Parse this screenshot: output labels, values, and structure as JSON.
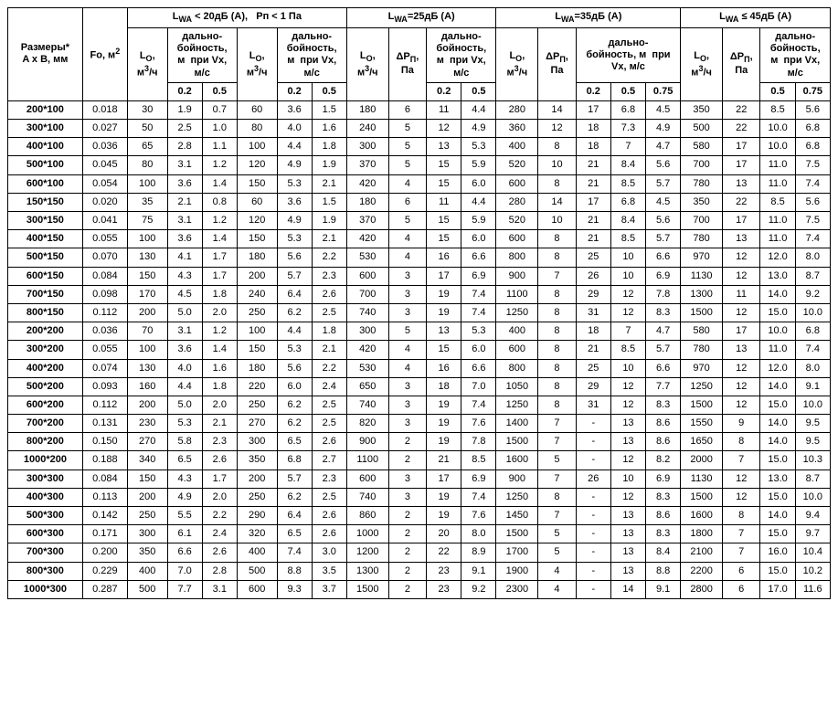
{
  "headers": {
    "size": "Размеры*\nA x B, мм",
    "fo": "Fo, м",
    "fo_sup": "2",
    "g1_top": "L<sub>WA</sub> &lt; 20дБ (А),&nbsp;&nbsp;&nbsp;Pп &lt; 1 Па",
    "g2_top": "L<sub>WA</sub>=25дБ (А)",
    "g3_top": "L<sub>WA</sub>=35дБ (А)",
    "g4_top": "L<sub>WA</sub> ≤ 45дБ (А)",
    "lo": "L<sub>O</sub>,<br>м<sup>3</sup>/ч",
    "dp": "ΔP<sub>П</sub>,<br>Па",
    "range": "дально-<br>бойность,<br>м&nbsp;&nbsp;при Vx,<br>м/с",
    "range3": "дально-<br>бойность, м&nbsp;&nbsp;при<br>Vx, м/с",
    "v02": "0.2",
    "v05": "0.5",
    "v075": "0.75"
  },
  "rows": [
    {
      "size": "200*100",
      "fo": "0.018",
      "g1a_lo": "30",
      "g1a_02": "1.9",
      "g1a_05": "0.7",
      "g1b_lo": "60",
      "g1b_02": "3.6",
      "g1b_05": "1.5",
      "g2_lo": "180",
      "g2_dp": "6",
      "g2_02": "11",
      "g2_05": "4.4",
      "g3_lo": "280",
      "g3_dp": "14",
      "g3_02": "17",
      "g3_05": "6.8",
      "g3_075": "4.5",
      "g4_lo": "350",
      "g4_dp": "22",
      "g4_05": "8.5",
      "g4_075": "5.6"
    },
    {
      "size": "300*100",
      "fo": "0.027",
      "g1a_lo": "50",
      "g1a_02": "2.5",
      "g1a_05": "1.0",
      "g1b_lo": "80",
      "g1b_02": "4.0",
      "g1b_05": "1.6",
      "g2_lo": "240",
      "g2_dp": "5",
      "g2_02": "12",
      "g2_05": "4.9",
      "g3_lo": "360",
      "g3_dp": "12",
      "g3_02": "18",
      "g3_05": "7.3",
      "g3_075": "4.9",
      "g4_lo": "500",
      "g4_dp": "22",
      "g4_05": "10.0",
      "g4_075": "6.8"
    },
    {
      "size": "400*100",
      "fo": "0.036",
      "g1a_lo": "65",
      "g1a_02": "2.8",
      "g1a_05": "1.1",
      "g1b_lo": "100",
      "g1b_02": "4.4",
      "g1b_05": "1.8",
      "g2_lo": "300",
      "g2_dp": "5",
      "g2_02": "13",
      "g2_05": "5.3",
      "g3_lo": "400",
      "g3_dp": "8",
      "g3_02": "18",
      "g3_05": "7",
      "g3_075": "4.7",
      "g4_lo": "580",
      "g4_dp": "17",
      "g4_05": "10.0",
      "g4_075": "6.8"
    },
    {
      "size": "500*100",
      "fo": "0.045",
      "g1a_lo": "80",
      "g1a_02": "3.1",
      "g1a_05": "1.2",
      "g1b_lo": "120",
      "g1b_02": "4.9",
      "g1b_05": "1.9",
      "g2_lo": "370",
      "g2_dp": "5",
      "g2_02": "15",
      "g2_05": "5.9",
      "g3_lo": "520",
      "g3_dp": "10",
      "g3_02": "21",
      "g3_05": "8.4",
      "g3_075": "5.6",
      "g4_lo": "700",
      "g4_dp": "17",
      "g4_05": "11.0",
      "g4_075": "7.5"
    },
    {
      "size": "600*100",
      "fo": "0.054",
      "g1a_lo": "100",
      "g1a_02": "3.6",
      "g1a_05": "1.4",
      "g1b_lo": "150",
      "g1b_02": "5.3",
      "g1b_05": "2.1",
      "g2_lo": "420",
      "g2_dp": "4",
      "g2_02": "15",
      "g2_05": "6.0",
      "g3_lo": "600",
      "g3_dp": "8",
      "g3_02": "21",
      "g3_05": "8.5",
      "g3_075": "5.7",
      "g4_lo": "780",
      "g4_dp": "13",
      "g4_05": "11.0",
      "g4_075": "7.4"
    },
    {
      "size": "150*150",
      "fo": "0.020",
      "g1a_lo": "35",
      "g1a_02": "2.1",
      "g1a_05": "0.8",
      "g1b_lo": "60",
      "g1b_02": "3.6",
      "g1b_05": "1.5",
      "g2_lo": "180",
      "g2_dp": "6",
      "g2_02": "11",
      "g2_05": "4.4",
      "g3_lo": "280",
      "g3_dp": "14",
      "g3_02": "17",
      "g3_05": "6.8",
      "g3_075": "4.5",
      "g4_lo": "350",
      "g4_dp": "22",
      "g4_05": "8.5",
      "g4_075": "5.6"
    },
    {
      "size": "300*150",
      "fo": "0.041",
      "g1a_lo": "75",
      "g1a_02": "3.1",
      "g1a_05": "1.2",
      "g1b_lo": "120",
      "g1b_02": "4.9",
      "g1b_05": "1.9",
      "g2_lo": "370",
      "g2_dp": "5",
      "g2_02": "15",
      "g2_05": "5.9",
      "g3_lo": "520",
      "g3_dp": "10",
      "g3_02": "21",
      "g3_05": "8.4",
      "g3_075": "5.6",
      "g4_lo": "700",
      "g4_dp": "17",
      "g4_05": "11.0",
      "g4_075": "7.5"
    },
    {
      "size": "400*150",
      "fo": "0.055",
      "g1a_lo": "100",
      "g1a_02": "3.6",
      "g1a_05": "1.4",
      "g1b_lo": "150",
      "g1b_02": "5.3",
      "g1b_05": "2.1",
      "g2_lo": "420",
      "g2_dp": "4",
      "g2_02": "15",
      "g2_05": "6.0",
      "g3_lo": "600",
      "g3_dp": "8",
      "g3_02": "21",
      "g3_05": "8.5",
      "g3_075": "5.7",
      "g4_lo": "780",
      "g4_dp": "13",
      "g4_05": "11.0",
      "g4_075": "7.4"
    },
    {
      "size": "500*150",
      "fo": "0.070",
      "g1a_lo": "130",
      "g1a_02": "4.1",
      "g1a_05": "1.7",
      "g1b_lo": "180",
      "g1b_02": "5.6",
      "g1b_05": "2.2",
      "g2_lo": "530",
      "g2_dp": "4",
      "g2_02": "16",
      "g2_05": "6.6",
      "g3_lo": "800",
      "g3_dp": "8",
      "g3_02": "25",
      "g3_05": "10",
      "g3_075": "6.6",
      "g4_lo": "970",
      "g4_dp": "12",
      "g4_05": "12.0",
      "g4_075": "8.0"
    },
    {
      "size": "600*150",
      "fo": "0.084",
      "g1a_lo": "150",
      "g1a_02": "4.3",
      "g1a_05": "1.7",
      "g1b_lo": "200",
      "g1b_02": "5.7",
      "g1b_05": "2.3",
      "g2_lo": "600",
      "g2_dp": "3",
      "g2_02": "17",
      "g2_05": "6.9",
      "g3_lo": "900",
      "g3_dp": "7",
      "g3_02": "26",
      "g3_05": "10",
      "g3_075": "6.9",
      "g4_lo": "1130",
      "g4_dp": "12",
      "g4_05": "13.0",
      "g4_075": "8.7"
    },
    {
      "size": "700*150",
      "fo": "0.098",
      "g1a_lo": "170",
      "g1a_02": "4.5",
      "g1a_05": "1.8",
      "g1b_lo": "240",
      "g1b_02": "6.4",
      "g1b_05": "2.6",
      "g2_lo": "700",
      "g2_dp": "3",
      "g2_02": "19",
      "g2_05": "7.4",
      "g3_lo": "1100",
      "g3_dp": "8",
      "g3_02": "29",
      "g3_05": "12",
      "g3_075": "7.8",
      "g4_lo": "1300",
      "g4_dp": "11",
      "g4_05": "14.0",
      "g4_075": "9.2"
    },
    {
      "size": "800*150",
      "fo": "0.112",
      "g1a_lo": "200",
      "g1a_02": "5.0",
      "g1a_05": "2.0",
      "g1b_lo": "250",
      "g1b_02": "6.2",
      "g1b_05": "2.5",
      "g2_lo": "740",
      "g2_dp": "3",
      "g2_02": "19",
      "g2_05": "7.4",
      "g3_lo": "1250",
      "g3_dp": "8",
      "g3_02": "31",
      "g3_05": "12",
      "g3_075": "8.3",
      "g4_lo": "1500",
      "g4_dp": "12",
      "g4_05": "15.0",
      "g4_075": "10.0"
    },
    {
      "size": "200*200",
      "fo": "0.036",
      "g1a_lo": "70",
      "g1a_02": "3.1",
      "g1a_05": "1.2",
      "g1b_lo": "100",
      "g1b_02": "4.4",
      "g1b_05": "1.8",
      "g2_lo": "300",
      "g2_dp": "5",
      "g2_02": "13",
      "g2_05": "5.3",
      "g3_lo": "400",
      "g3_dp": "8",
      "g3_02": "18",
      "g3_05": "7",
      "g3_075": "4.7",
      "g4_lo": "580",
      "g4_dp": "17",
      "g4_05": "10.0",
      "g4_075": "6.8"
    },
    {
      "size": "300*200",
      "fo": "0.055",
      "g1a_lo": "100",
      "g1a_02": "3.6",
      "g1a_05": "1.4",
      "g1b_lo": "150",
      "g1b_02": "5.3",
      "g1b_05": "2.1",
      "g2_lo": "420",
      "g2_dp": "4",
      "g2_02": "15",
      "g2_05": "6.0",
      "g3_lo": "600",
      "g3_dp": "8",
      "g3_02": "21",
      "g3_05": "8.5",
      "g3_075": "5.7",
      "g4_lo": "780",
      "g4_dp": "13",
      "g4_05": "11.0",
      "g4_075": "7.4"
    },
    {
      "size": "400*200",
      "fo": "0.074",
      "g1a_lo": "130",
      "g1a_02": "4.0",
      "g1a_05": "1.6",
      "g1b_lo": "180",
      "g1b_02": "5.6",
      "g1b_05": "2.2",
      "g2_lo": "530",
      "g2_dp": "4",
      "g2_02": "16",
      "g2_05": "6.6",
      "g3_lo": "800",
      "g3_dp": "8",
      "g3_02": "25",
      "g3_05": "10",
      "g3_075": "6.6",
      "g4_lo": "970",
      "g4_dp": "12",
      "g4_05": "12.0",
      "g4_075": "8.0"
    },
    {
      "size": "500*200",
      "fo": "0.093",
      "g1a_lo": "160",
      "g1a_02": "4.4",
      "g1a_05": "1.8",
      "g1b_lo": "220",
      "g1b_02": "6.0",
      "g1b_05": "2.4",
      "g2_lo": "650",
      "g2_dp": "3",
      "g2_02": "18",
      "g2_05": "7.0",
      "g3_lo": "1050",
      "g3_dp": "8",
      "g3_02": "29",
      "g3_05": "12",
      "g3_075": "7.7",
      "g4_lo": "1250",
      "g4_dp": "12",
      "g4_05": "14.0",
      "g4_075": "9.1"
    },
    {
      "size": "600*200",
      "fo": "0.112",
      "g1a_lo": "200",
      "g1a_02": "5.0",
      "g1a_05": "2.0",
      "g1b_lo": "250",
      "g1b_02": "6.2",
      "g1b_05": "2.5",
      "g2_lo": "740",
      "g2_dp": "3",
      "g2_02": "19",
      "g2_05": "7.4",
      "g3_lo": "1250",
      "g3_dp": "8",
      "g3_02": "31",
      "g3_05": "12",
      "g3_075": "8.3",
      "g4_lo": "1500",
      "g4_dp": "12",
      "g4_05": "15.0",
      "g4_075": "10.0"
    },
    {
      "size": "700*200",
      "fo": "0.131",
      "g1a_lo": "230",
      "g1a_02": "5.3",
      "g1a_05": "2.1",
      "g1b_lo": "270",
      "g1b_02": "6.2",
      "g1b_05": "2.5",
      "g2_lo": "820",
      "g2_dp": "3",
      "g2_02": "19",
      "g2_05": "7.6",
      "g3_lo": "1400",
      "g3_dp": "7",
      "g3_02": "-",
      "g3_05": "13",
      "g3_075": "8.6",
      "g4_lo": "1550",
      "g4_dp": "9",
      "g4_05": "14.0",
      "g4_075": "9.5"
    },
    {
      "size": "800*200",
      "fo": "0.150",
      "g1a_lo": "270",
      "g1a_02": "5.8",
      "g1a_05": "2.3",
      "g1b_lo": "300",
      "g1b_02": "6.5",
      "g1b_05": "2.6",
      "g2_lo": "900",
      "g2_dp": "2",
      "g2_02": "19",
      "g2_05": "7.8",
      "g3_lo": "1500",
      "g3_dp": "7",
      "g3_02": "-",
      "g3_05": "13",
      "g3_075": "8.6",
      "g4_lo": "1650",
      "g4_dp": "8",
      "g4_05": "14.0",
      "g4_075": "9.5"
    },
    {
      "size": "1000*200",
      "fo": "0.188",
      "g1a_lo": "340",
      "g1a_02": "6.5",
      "g1a_05": "2.6",
      "g1b_lo": "350",
      "g1b_02": "6.8",
      "g1b_05": "2.7",
      "g2_lo": "1100",
      "g2_dp": "2",
      "g2_02": "21",
      "g2_05": "8.5",
      "g3_lo": "1600",
      "g3_dp": "5",
      "g3_02": "-",
      "g3_05": "12",
      "g3_075": "8.2",
      "g4_lo": "2000",
      "g4_dp": "7",
      "g4_05": "15.0",
      "g4_075": "10.3"
    },
    {
      "size": "300*300",
      "fo": "0.084",
      "g1a_lo": "150",
      "g1a_02": "4.3",
      "g1a_05": "1.7",
      "g1b_lo": "200",
      "g1b_02": "5.7",
      "g1b_05": "2.3",
      "g2_lo": "600",
      "g2_dp": "3",
      "g2_02": "17",
      "g2_05": "6.9",
      "g3_lo": "900",
      "g3_dp": "7",
      "g3_02": "26",
      "g3_05": "10",
      "g3_075": "6.9",
      "g4_lo": "1130",
      "g4_dp": "12",
      "g4_05": "13.0",
      "g4_075": "8.7"
    },
    {
      "size": "400*300",
      "fo": "0.113",
      "g1a_lo": "200",
      "g1a_02": "4.9",
      "g1a_05": "2.0",
      "g1b_lo": "250",
      "g1b_02": "6.2",
      "g1b_05": "2.5",
      "g2_lo": "740",
      "g2_dp": "3",
      "g2_02": "19",
      "g2_05": "7.4",
      "g3_lo": "1250",
      "g3_dp": "8",
      "g3_02": "-",
      "g3_05": "12",
      "g3_075": "8.3",
      "g4_lo": "1500",
      "g4_dp": "12",
      "g4_05": "15.0",
      "g4_075": "10.0"
    },
    {
      "size": "500*300",
      "fo": "0.142",
      "g1a_lo": "250",
      "g1a_02": "5.5",
      "g1a_05": "2.2",
      "g1b_lo": "290",
      "g1b_02": "6.4",
      "g1b_05": "2.6",
      "g2_lo": "860",
      "g2_dp": "2",
      "g2_02": "19",
      "g2_05": "7.6",
      "g3_lo": "1450",
      "g3_dp": "7",
      "g3_02": "-",
      "g3_05": "13",
      "g3_075": "8.6",
      "g4_lo": "1600",
      "g4_dp": "8",
      "g4_05": "14.0",
      "g4_075": "9.4"
    },
    {
      "size": "600*300",
      "fo": "0.171",
      "g1a_lo": "300",
      "g1a_02": "6.1",
      "g1a_05": "2.4",
      "g1b_lo": "320",
      "g1b_02": "6.5",
      "g1b_05": "2.6",
      "g2_lo": "1000",
      "g2_dp": "2",
      "g2_02": "20",
      "g2_05": "8.0",
      "g3_lo": "1500",
      "g3_dp": "5",
      "g3_02": "-",
      "g3_05": "13",
      "g3_075": "8.3",
      "g4_lo": "1800",
      "g4_dp": "7",
      "g4_05": "15.0",
      "g4_075": "9.7"
    },
    {
      "size": "700*300",
      "fo": "0.200",
      "g1a_lo": "350",
      "g1a_02": "6.6",
      "g1a_05": "2.6",
      "g1b_lo": "400",
      "g1b_02": "7.4",
      "g1b_05": "3.0",
      "g2_lo": "1200",
      "g2_dp": "2",
      "g2_02": "22",
      "g2_05": "8.9",
      "g3_lo": "1700",
      "g3_dp": "5",
      "g3_02": "-",
      "g3_05": "13",
      "g3_075": "8.4",
      "g4_lo": "2100",
      "g4_dp": "7",
      "g4_05": "16.0",
      "g4_075": "10.4"
    },
    {
      "size": "800*300",
      "fo": "0.229",
      "g1a_lo": "400",
      "g1a_02": "7.0",
      "g1a_05": "2.8",
      "g1b_lo": "500",
      "g1b_02": "8.8",
      "g1b_05": "3.5",
      "g2_lo": "1300",
      "g2_dp": "2",
      "g2_02": "23",
      "g2_05": "9.1",
      "g3_lo": "1900",
      "g3_dp": "4",
      "g3_02": "-",
      "g3_05": "13",
      "g3_075": "8.8",
      "g4_lo": "2200",
      "g4_dp": "6",
      "g4_05": "15.0",
      "g4_075": "10.2"
    },
    {
      "size": "1000*300",
      "fo": "0.287",
      "g1a_lo": "500",
      "g1a_02": "7.7",
      "g1a_05": "3.1",
      "g1b_lo": "600",
      "g1b_02": "9.3",
      "g1b_05": "3.7",
      "g2_lo": "1500",
      "g2_dp": "2",
      "g2_02": "23",
      "g2_05": "9.2",
      "g3_lo": "2300",
      "g3_dp": "4",
      "g3_02": "-",
      "g3_05": "14",
      "g3_075": "9.1",
      "g4_lo": "2800",
      "g4_dp": "6",
      "g4_05": "17.0",
      "g4_075": "11.6"
    }
  ]
}
